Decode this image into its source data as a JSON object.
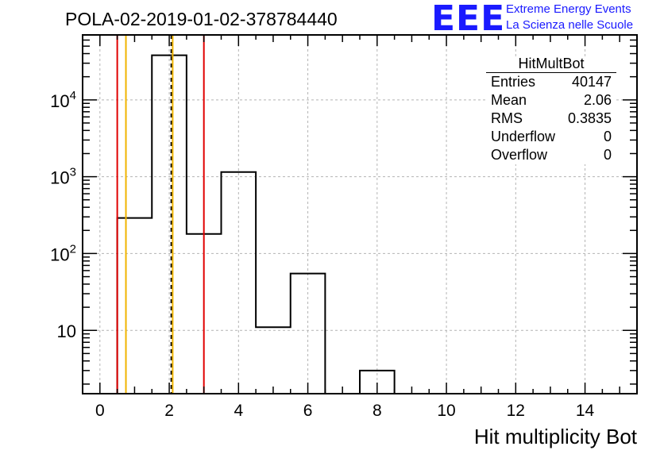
{
  "title": "POLA-02-2019-01-02-378784440",
  "logo": {
    "mark": "EEE",
    "line1": "Extreme Energy Events",
    "line2": "La Scienza nelle Scuole",
    "color": "#1a1aff"
  },
  "stats_box": {
    "title": "HitMultBot",
    "rows": [
      {
        "label": "Entries",
        "value": "40147"
      },
      {
        "label": "Mean",
        "value": "2.06"
      },
      {
        "label": "RMS",
        "value": "0.3835"
      },
      {
        "label": "Underflow",
        "value": "0"
      },
      {
        "label": "Overflow",
        "value": "0"
      }
    ]
  },
  "chart_data": {
    "type": "bar",
    "histogram": true,
    "title": "POLA-02-2019-01-02-378784440",
    "xlabel": "Hit multiplicity Bot",
    "ylabel": "",
    "x_scale": "linear",
    "y_scale": "log",
    "xlim": [
      -0.5,
      15.5
    ],
    "ylim": [
      1.5,
      70000
    ],
    "bin_edges": [
      -0.5,
      0.5,
      1.5,
      2.5,
      3.5,
      4.5,
      5.5,
      6.5,
      7.5,
      8.5,
      9.5,
      10.5,
      11.5,
      12.5,
      13.5,
      14.5,
      15.5
    ],
    "values": [
      0,
      290,
      38000,
      180,
      1150,
      11,
      55,
      0,
      3,
      0,
      0,
      0,
      0,
      0,
      0,
      0
    ],
    "x_ticks": [
      0,
      2,
      4,
      6,
      8,
      10,
      12,
      14
    ],
    "x_tick_labels": [
      "0",
      "2",
      "4",
      "6",
      "8",
      "10",
      "12",
      "14"
    ],
    "y_ticks": [
      {
        "value": 10,
        "label": "10",
        "exp": ""
      },
      {
        "value": 100,
        "label": "10",
        "exp": "2"
      },
      {
        "value": 1000,
        "label": "10",
        "exp": "3"
      },
      {
        "value": 10000,
        "label": "10",
        "exp": "4"
      }
    ],
    "grid": true,
    "reference_lines": [
      {
        "x": 0.5,
        "color": "#e00000",
        "style": "solid"
      },
      {
        "x": 0.75,
        "color": "#f0b400",
        "style": "solid"
      },
      {
        "x": 2.06,
        "color": "#000000",
        "style": "dashed"
      },
      {
        "x": 2.1,
        "color": "#f0b400",
        "style": "solid"
      },
      {
        "x": 3.0,
        "color": "#e00000",
        "style": "solid"
      }
    ],
    "histogram_color": "#000000",
    "grid_color": "#b4b4b4"
  }
}
